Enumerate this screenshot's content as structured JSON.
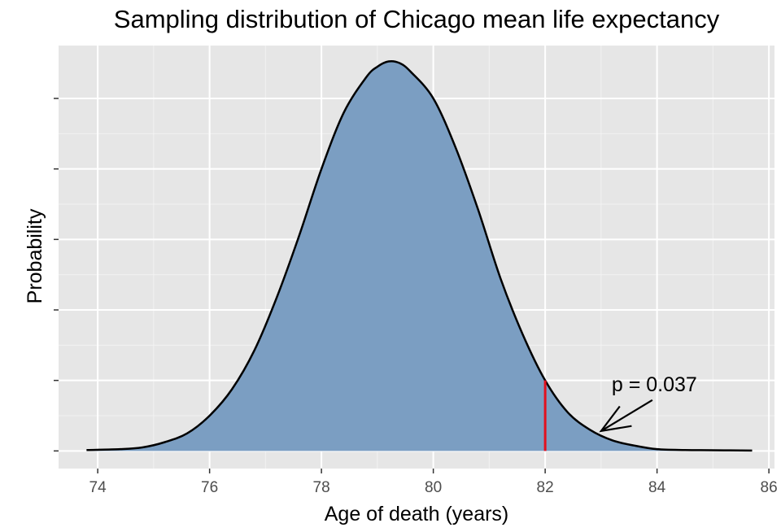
{
  "chart_data": {
    "type": "area",
    "title": "Sampling distribution of Chicago mean life expectancy",
    "xlabel": "Age of death (years)",
    "ylabel": "Probability",
    "xlim": [
      73.3,
      86.1
    ],
    "ylim": [
      -0.01,
      0.23
    ],
    "x_ticks": [
      74,
      76,
      78,
      80,
      82,
      84,
      86
    ],
    "y_ticks_shown": false,
    "grid": true,
    "series": [
      {
        "x": [
          73.8,
          74.4,
          74.8,
          75.2,
          75.6,
          76.0,
          76.4,
          76.8,
          77.2,
          77.6,
          78.0,
          78.4,
          78.8,
          79.0,
          79.2,
          79.4,
          79.6,
          80.0,
          80.4,
          80.8,
          81.2,
          81.6,
          82.0,
          82.4,
          82.8,
          83.2,
          83.6,
          84.0,
          84.5,
          85.0,
          85.7
        ],
        "y": [
          0.0005,
          0.001,
          0.002,
          0.005,
          0.01,
          0.02,
          0.035,
          0.057,
          0.087,
          0.122,
          0.16,
          0.192,
          0.212,
          0.218,
          0.221,
          0.22,
          0.215,
          0.2,
          0.172,
          0.137,
          0.098,
          0.066,
          0.04,
          0.022,
          0.012,
          0.006,
          0.003,
          0.001,
          0.0005,
          0.0004,
          0.0002
        ]
      }
    ],
    "reference_line": {
      "x": 82.0,
      "color": "#e3101e"
    },
    "annotation": {
      "text": "p = 0.037",
      "arrow_to_x": 83.0
    },
    "fill_color": "#7b9ec2",
    "panel_color": "#e6e6e6"
  }
}
